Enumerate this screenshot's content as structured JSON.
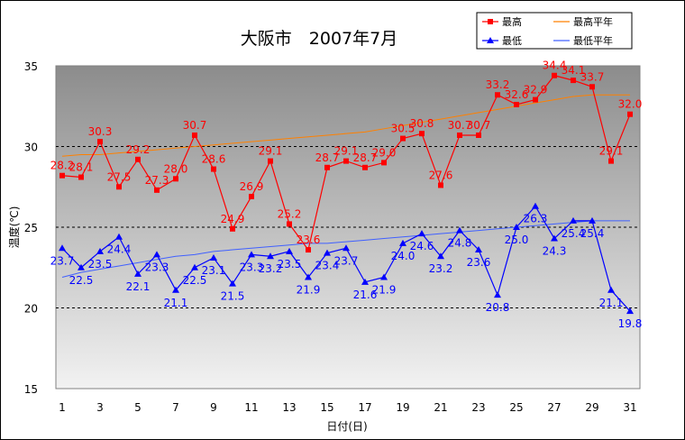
{
  "chart_data": {
    "type": "line",
    "title": "大阪市　2007年7月",
    "xlabel": "日付(日)",
    "ylabel": "温度(℃)",
    "ylim": [
      15,
      35
    ],
    "yticks": [
      15,
      20,
      25,
      30,
      35
    ],
    "xlim": [
      1,
      31
    ],
    "xticks": [
      1,
      3,
      5,
      7,
      9,
      11,
      13,
      15,
      17,
      19,
      21,
      23,
      25,
      27,
      29,
      31
    ],
    "grid": "horizontal dashed at 20, 25, 30",
    "legend_position": "top-right",
    "x": [
      1,
      2,
      3,
      4,
      5,
      6,
      7,
      8,
      9,
      10,
      11,
      12,
      13,
      14,
      15,
      16,
      17,
      18,
      19,
      20,
      21,
      22,
      23,
      24,
      25,
      26,
      27,
      28,
      29,
      30,
      31
    ],
    "series": [
      {
        "name": "最高",
        "color": "#ff0000",
        "marker": "square",
        "values": [
          28.2,
          28.1,
          30.3,
          27.5,
          29.2,
          27.3,
          28.0,
          30.7,
          28.6,
          24.9,
          26.9,
          29.1,
          25.2,
          23.6,
          28.7,
          29.1,
          28.7,
          29.0,
          30.5,
          30.8,
          27.6,
          30.7,
          30.7,
          33.2,
          32.6,
          32.9,
          34.4,
          34.1,
          33.7,
          29.1,
          32.0
        ],
        "labels": [
          "28.2",
          "28.1",
          "30.3",
          "27.5",
          "29.2",
          "27.3",
          "28.0",
          "30.7",
          "28.6",
          "24.9",
          "26.9",
          "29.1",
          "25.2",
          "23.6",
          "28.7",
          "29.1",
          "28.7",
          "29.0",
          "30.5",
          "30.8",
          "27.6",
          "30.7",
          "30.7",
          "33.2",
          "32.6",
          "32.9",
          "34.4",
          "34.1",
          "33.7",
          "29.1",
          "32.0"
        ]
      },
      {
        "name": "最低",
        "color": "#0000ff",
        "marker": "triangle",
        "values": [
          23.7,
          22.5,
          23.5,
          24.4,
          22.1,
          23.3,
          21.1,
          22.5,
          23.1,
          21.5,
          23.3,
          23.2,
          23.5,
          21.9,
          23.4,
          23.7,
          21.6,
          21.9,
          24.0,
          24.6,
          23.2,
          24.8,
          23.6,
          20.8,
          25.0,
          26.3,
          24.3,
          25.4,
          25.4,
          21.1,
          19.8
        ],
        "labels": [
          "23.7",
          "22.5",
          "23.5",
          "24.4",
          "22.1",
          "23.3",
          "21.1",
          "22.5",
          "23.1",
          "21.5",
          "23.3",
          "23.2",
          "23.5",
          "21.9",
          "23.4",
          "23.7",
          "21.6",
          "21.9",
          "24.0",
          "24.6",
          "23.2",
          "24.8",
          "23.6",
          "20.8",
          "25.0",
          "26.3",
          "24.3",
          "25.4",
          "25.4",
          "21.1",
          "19.8"
        ]
      },
      {
        "name": "最高平年",
        "color": "#ff8000",
        "marker": "none",
        "values": [
          29.4,
          29.5,
          29.5,
          29.6,
          29.7,
          29.8,
          29.9,
          30.0,
          30.1,
          30.2,
          30.3,
          30.4,
          30.5,
          30.6,
          30.7,
          30.8,
          30.9,
          31.1,
          31.3,
          31.5,
          31.7,
          31.9,
          32.1,
          32.3,
          32.5,
          32.7,
          32.9,
          33.1,
          33.2,
          33.2,
          33.2
        ]
      },
      {
        "name": "最低平年",
        "color": "#4060ff",
        "marker": "none",
        "values": [
          21.9,
          22.2,
          22.4,
          22.6,
          22.8,
          23.0,
          23.2,
          23.3,
          23.5,
          23.6,
          23.7,
          23.8,
          23.9,
          24.0,
          24.0,
          24.1,
          24.2,
          24.3,
          24.4,
          24.5,
          24.6,
          24.7,
          24.8,
          24.9,
          25.0,
          25.1,
          25.2,
          25.3,
          25.4,
          25.4,
          25.4
        ]
      }
    ]
  }
}
